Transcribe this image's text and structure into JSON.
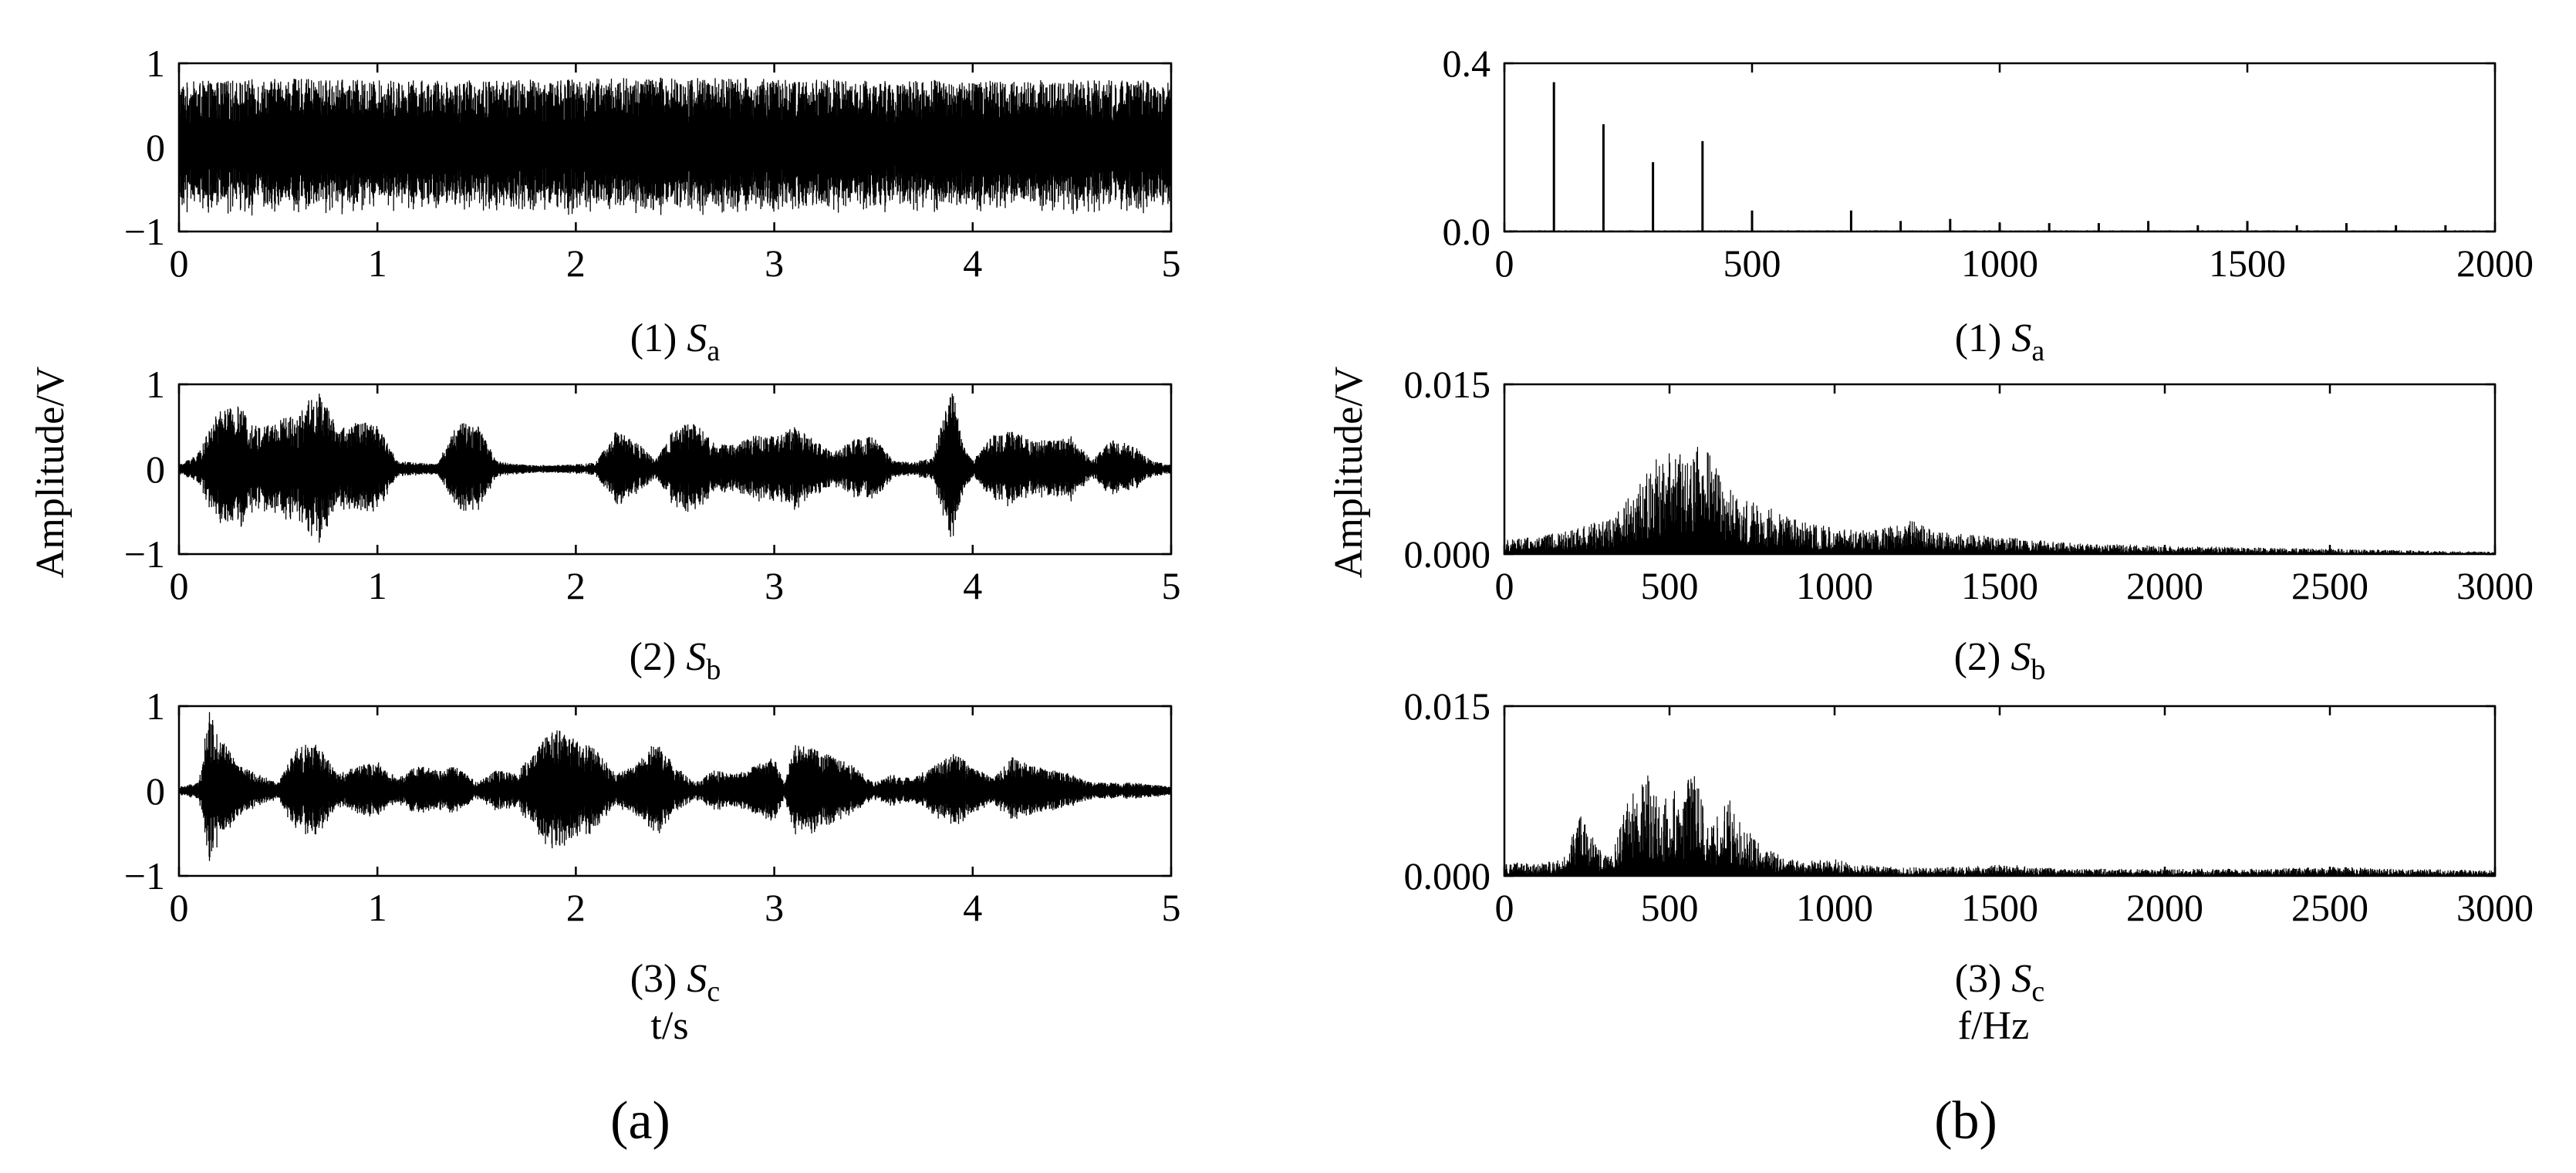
{
  "figure": {
    "panel_a_label": "(a)",
    "panel_b_label": "(b)",
    "time_ylabel": "Amplitude/V",
    "time_xlabel": "t/s",
    "freq_ylabel": "Amplitude/V",
    "freq_xlabel": "f/Hz"
  },
  "chart_data": [
    {
      "id": "a1",
      "type": "line",
      "domain": "time",
      "caption_prefix": "(1) ",
      "caption_var": "S",
      "caption_sub": "a",
      "xlabel": "",
      "ylabel": "Amplitude/V",
      "xlim": [
        0,
        5
      ],
      "ylim": [
        -1,
        1
      ],
      "xticks": [
        "0",
        "1",
        "2",
        "3",
        "4",
        "5"
      ],
      "yticks": [
        "1",
        "0",
        "−1"
      ],
      "signal": "dense noise-like waveform filling roughly ±0.8 V over the whole 0–5 s span",
      "envelope": {
        "t": [
          0,
          0.5,
          1,
          1.5,
          2,
          2.5,
          3,
          3.5,
          4,
          4.5,
          5
        ],
        "amp": [
          0.78,
          0.82,
          0.8,
          0.8,
          0.82,
          0.84,
          0.82,
          0.8,
          0.8,
          0.8,
          0.8
        ]
      }
    },
    {
      "id": "a2",
      "type": "line",
      "domain": "time",
      "caption_prefix": "(2) ",
      "caption_var": "S",
      "caption_sub": "b",
      "xlabel": "",
      "ylabel": "Amplitude/V",
      "xlim": [
        0,
        5
      ],
      "ylim": [
        -1,
        1
      ],
      "xticks": [
        "0",
        "1",
        "2",
        "3",
        "4",
        "5"
      ],
      "yticks": [
        "1",
        "0",
        "−1"
      ],
      "signal": "speech-like bursts",
      "envelope": {
        "t": [
          0,
          0.1,
          0.2,
          0.3,
          0.4,
          0.5,
          0.6,
          0.7,
          0.8,
          0.9,
          1.0,
          1.1,
          1.2,
          1.3,
          1.4,
          1.5,
          1.6,
          1.7,
          1.8,
          1.9,
          2.0,
          2.1,
          2.2,
          2.3,
          2.4,
          2.5,
          2.6,
          2.7,
          2.8,
          2.9,
          3.0,
          3.1,
          3.2,
          3.3,
          3.4,
          3.5,
          3.6,
          3.7,
          3.8,
          3.85,
          3.9,
          3.95,
          4.0,
          4.1,
          4.2,
          4.3,
          4.4,
          4.5,
          4.6,
          4.7,
          4.8,
          4.9,
          5.0
        ],
        "amp": [
          0.05,
          0.2,
          0.7,
          0.75,
          0.5,
          0.6,
          0.65,
          0.95,
          0.5,
          0.55,
          0.55,
          0.1,
          0.08,
          0.06,
          0.55,
          0.55,
          0.1,
          0.06,
          0.05,
          0.05,
          0.06,
          0.08,
          0.45,
          0.35,
          0.1,
          0.5,
          0.55,
          0.3,
          0.3,
          0.4,
          0.4,
          0.5,
          0.35,
          0.2,
          0.35,
          0.4,
          0.1,
          0.08,
          0.15,
          0.6,
          0.95,
          0.3,
          0.1,
          0.4,
          0.45,
          0.35,
          0.35,
          0.4,
          0.1,
          0.35,
          0.3,
          0.1,
          0.05
        ]
      }
    },
    {
      "id": "a3",
      "type": "line",
      "domain": "time",
      "caption_prefix": "(3) ",
      "caption_var": "S",
      "caption_sub": "c",
      "xlabel": "t/s",
      "ylabel": "Amplitude/V",
      "xlim": [
        0,
        5
      ],
      "ylim": [
        -1,
        1
      ],
      "xticks": [
        "0",
        "1",
        "2",
        "3",
        "4",
        "5"
      ],
      "yticks": [
        "1",
        "0",
        "−1"
      ],
      "signal": "speech-like bursts",
      "envelope": {
        "t": [
          0,
          0.1,
          0.15,
          0.2,
          0.3,
          0.4,
          0.5,
          0.6,
          0.7,
          0.8,
          0.9,
          1.0,
          1.1,
          1.2,
          1.3,
          1.4,
          1.5,
          1.6,
          1.7,
          1.8,
          1.85,
          1.9,
          2.0,
          2.1,
          2.2,
          2.3,
          2.4,
          2.5,
          2.6,
          2.7,
          2.8,
          2.9,
          3.0,
          3.05,
          3.1,
          3.2,
          3.3,
          3.4,
          3.5,
          3.6,
          3.7,
          3.8,
          3.9,
          4.0,
          4.1,
          4.2,
          4.3,
          4.4,
          4.5,
          4.6,
          4.7,
          4.8,
          4.9,
          5.0
        ],
        "amp": [
          0.05,
          0.1,
          0.95,
          0.7,
          0.3,
          0.2,
          0.1,
          0.55,
          0.55,
          0.2,
          0.3,
          0.35,
          0.15,
          0.3,
          0.25,
          0.3,
          0.1,
          0.25,
          0.2,
          0.5,
          0.65,
          0.75,
          0.6,
          0.5,
          0.2,
          0.3,
          0.6,
          0.3,
          0.1,
          0.25,
          0.2,
          0.3,
          0.4,
          0.1,
          0.55,
          0.5,
          0.4,
          0.3,
          0.1,
          0.2,
          0.15,
          0.3,
          0.45,
          0.3,
          0.15,
          0.4,
          0.3,
          0.25,
          0.2,
          0.1,
          0.1,
          0.1,
          0.08,
          0.05
        ]
      }
    },
    {
      "id": "b1",
      "type": "line",
      "domain": "freq",
      "caption_prefix": "(1) ",
      "caption_var": "S",
      "caption_sub": "a",
      "xlabel": "",
      "ylabel": "Amplitude/V",
      "xlim": [
        0,
        2000
      ],
      "ylim": [
        0,
        0.4
      ],
      "xticks": [
        "0",
        "500",
        "1000",
        "1500",
        "2000"
      ],
      "yticks": [
        "0.4",
        "0.0"
      ],
      "baseline": 0.003,
      "peaks": {
        "f": [
          100,
          200,
          300,
          400,
          500,
          700,
          800,
          900,
          1000,
          1100,
          1200,
          1300,
          1400,
          1500,
          1600,
          1700,
          1800,
          1900
        ],
        "amp": [
          0.355,
          0.255,
          0.165,
          0.215,
          0.05,
          0.05,
          0.025,
          0.03,
          0.02,
          0.02,
          0.02,
          0.025,
          0.015,
          0.025,
          0.015,
          0.02,
          0.015,
          0.015
        ]
      }
    },
    {
      "id": "b2",
      "type": "line",
      "domain": "freq",
      "caption_prefix": "(2) ",
      "caption_var": "S",
      "caption_sub": "b",
      "xlabel": "",
      "ylabel": "Amplitude/V",
      "xlim": [
        0,
        3000
      ],
      "ylim": [
        0,
        0.015
      ],
      "xticks": [
        "0",
        "500",
        "1000",
        "1500",
        "2000",
        "2500",
        "3000"
      ],
      "yticks": [
        "0.015",
        "0.000"
      ],
      "envelope": {
        "f": [
          0,
          100,
          200,
          300,
          350,
          400,
          450,
          500,
          550,
          600,
          650,
          700,
          800,
          900,
          1000,
          1100,
          1200,
          1250,
          1300,
          1400,
          1500,
          1600,
          1800,
          2000,
          2200,
          2400,
          2600,
          2800,
          3000
        ],
        "amp": [
          0.0012,
          0.0015,
          0.002,
          0.003,
          0.004,
          0.006,
          0.008,
          0.0095,
          0.008,
          0.0098,
          0.007,
          0.005,
          0.004,
          0.0028,
          0.0022,
          0.002,
          0.0025,
          0.003,
          0.002,
          0.0017,
          0.0015,
          0.0012,
          0.0009,
          0.0007,
          0.0006,
          0.0005,
          0.0004,
          0.0003,
          0.0002
        ]
      }
    },
    {
      "id": "b3",
      "type": "line",
      "domain": "freq",
      "caption_prefix": "(3) ",
      "caption_var": "S",
      "caption_sub": "c",
      "xlabel": "f/Hz",
      "ylabel": "Amplitude/V",
      "xlim": [
        0,
        3000
      ],
      "ylim": [
        0,
        0.015
      ],
      "xticks": [
        "0",
        "500",
        "1000",
        "1500",
        "2000",
        "2500",
        "3000"
      ],
      "yticks": [
        "0.015",
        "0.000"
      ],
      "envelope": {
        "f": [
          0,
          100,
          180,
          230,
          280,
          320,
          380,
          420,
          470,
          520,
          580,
          620,
          680,
          720,
          780,
          830,
          900,
          1000,
          1050,
          1200,
          1400,
          1500,
          1700,
          2000,
          2300,
          2500,
          2700,
          3000
        ],
        "amp": [
          0.0012,
          0.001,
          0.0015,
          0.0055,
          0.0025,
          0.0015,
          0.007,
          0.0095,
          0.006,
          0.0075,
          0.0085,
          0.004,
          0.0065,
          0.0045,
          0.0025,
          0.0018,
          0.0012,
          0.0015,
          0.001,
          0.0007,
          0.0008,
          0.001,
          0.0006,
          0.0006,
          0.0006,
          0.0008,
          0.0006,
          0.0005
        ]
      }
    }
  ]
}
